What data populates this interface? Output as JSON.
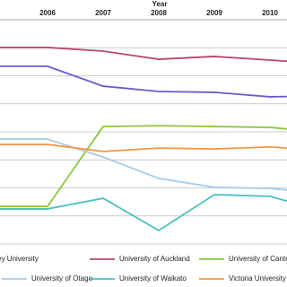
{
  "chart_data": {
    "type": "line",
    "x_label": "Year",
    "categories": [
      null,
      "2006",
      "2007",
      "2008",
      "2009",
      "2010",
      null
    ],
    "ylim": [
      0,
      8
    ],
    "yticks": [
      0,
      1,
      2,
      3,
      4,
      5,
      6,
      7,
      8
    ],
    "grid": true,
    "legend": "bottom",
    "series": [
      {
        "name": "Massey University",
        "color": "#6a5acd",
        "values": [
          6.34,
          6.34,
          5.63,
          5.44,
          5.41,
          5.25,
          5.28
        ]
      },
      {
        "name": "University of Auckland",
        "color": "#b8476a",
        "values": [
          7.01,
          7.01,
          6.88,
          6.59,
          6.69,
          6.56,
          6.43
        ]
      },
      {
        "name": "University of Canterbury",
        "color": "#8cc63f",
        "values": [
          1.34,
          1.34,
          4.19,
          4.22,
          4.19,
          4.16,
          3.97
        ]
      },
      {
        "name": "University of Otago",
        "color": "#a6cce8",
        "values": [
          3.74,
          3.74,
          3.1,
          2.34,
          2.02,
          1.98,
          1.79
        ]
      },
      {
        "name": "University of Waikato",
        "color": "#4bbfc0",
        "values": [
          1.25,
          1.25,
          1.63,
          0.48,
          1.76,
          1.7,
          1.15
        ]
      },
      {
        "name": "Victoria University of Wellington",
        "color": "#f79646",
        "values": [
          3.55,
          3.55,
          3.3,
          3.42,
          3.39,
          3.46,
          3.33
        ]
      }
    ]
  }
}
